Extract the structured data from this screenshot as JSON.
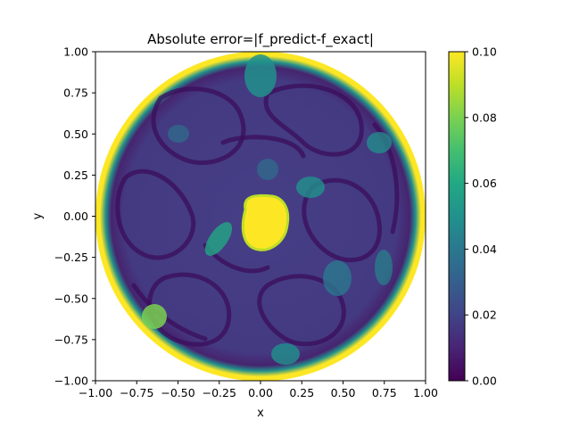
{
  "chart_data": {
    "type": "heatmap",
    "title": "Absolute error=|f_predict-f_exact|",
    "xlabel": "x",
    "ylabel": "y",
    "xlim": [
      -1.0,
      1.0
    ],
    "ylim": [
      -1.0,
      1.0
    ],
    "x_ticks": [
      "−1.00",
      "−0.75",
      "−0.50",
      "−0.25",
      "0.00",
      "0.25",
      "0.50",
      "0.75",
      "1.00"
    ],
    "y_ticks": [
      "1.00",
      "0.75",
      "0.50",
      "0.25",
      "0.00",
      "−0.25",
      "−0.50",
      "−0.75",
      "−1.00"
    ],
    "colorbar": {
      "colormap": "viridis",
      "range": [
        0.0,
        0.1
      ],
      "ticks": [
        "0.00",
        "0.02",
        "0.04",
        "0.06",
        "0.08",
        "0.10"
      ]
    },
    "domain": "unit disk",
    "grid": false,
    "features": [
      {
        "x": 0.02,
        "y": 0.0,
        "level": 0.1,
        "desc": "central saturated blob"
      },
      {
        "x": -0.65,
        "y": -0.62,
        "level": 0.08,
        "desc": "lower-left bright spot"
      },
      {
        "x": -0.25,
        "y": -0.15,
        "level": 0.06
      },
      {
        "x": 0.3,
        "y": 0.15,
        "level": 0.055
      },
      {
        "x": 0.45,
        "y": -0.35,
        "level": 0.045
      },
      {
        "x": 0.7,
        "y": 0.45,
        "level": 0.045
      },
      {
        "x": 0.0,
        "y": 0.85,
        "level": 0.05
      },
      {
        "x": 0.15,
        "y": -0.85,
        "level": 0.045
      }
    ]
  }
}
